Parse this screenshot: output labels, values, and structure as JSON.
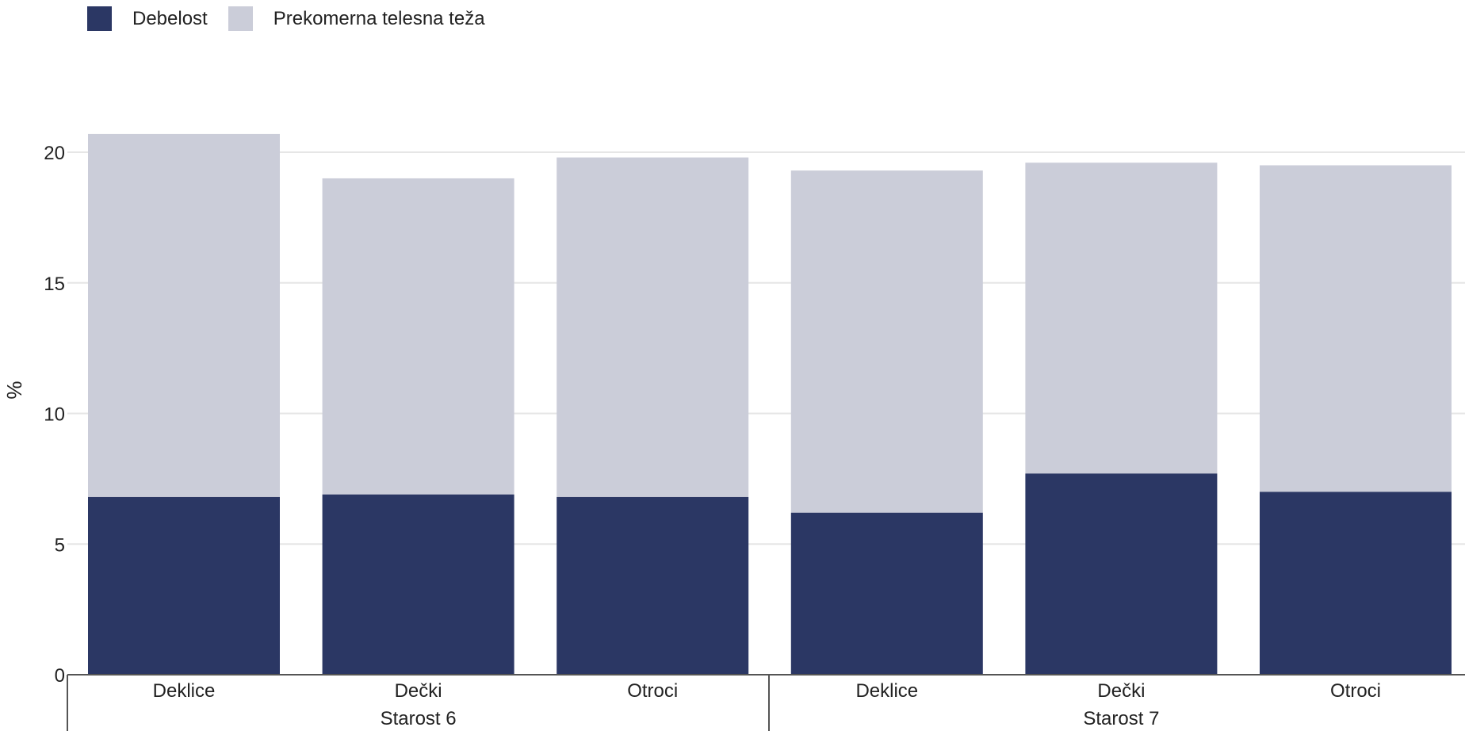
{
  "chart_data": {
    "type": "bar",
    "stacked": true,
    "ylabel": "%",
    "ylim": [
      0,
      21
    ],
    "yticks": [
      0,
      5,
      10,
      15,
      20
    ],
    "grid": true,
    "legend_position": "top-left",
    "categories": [
      "Deklice",
      "Dečki",
      "Otroci",
      "Deklice",
      "Dečki",
      "Otroci"
    ],
    "groups": [
      {
        "label": "Starost 6",
        "categories": [
          "Deklice",
          "Dečki",
          "Otroci"
        ]
      },
      {
        "label": "Starost 7",
        "categories": [
          "Deklice",
          "Dečki",
          "Otroci"
        ]
      }
    ],
    "series": [
      {
        "name": "Debelost",
        "color": "#2b3764",
        "values": [
          6.8,
          6.9,
          6.8,
          6.2,
          7.7,
          7.0
        ]
      },
      {
        "name": "Prekomerna telesna teža",
        "color": "#cbcdd9",
        "values": [
          13.9,
          12.1,
          13.0,
          13.1,
          11.9,
          12.5
        ]
      }
    ]
  }
}
